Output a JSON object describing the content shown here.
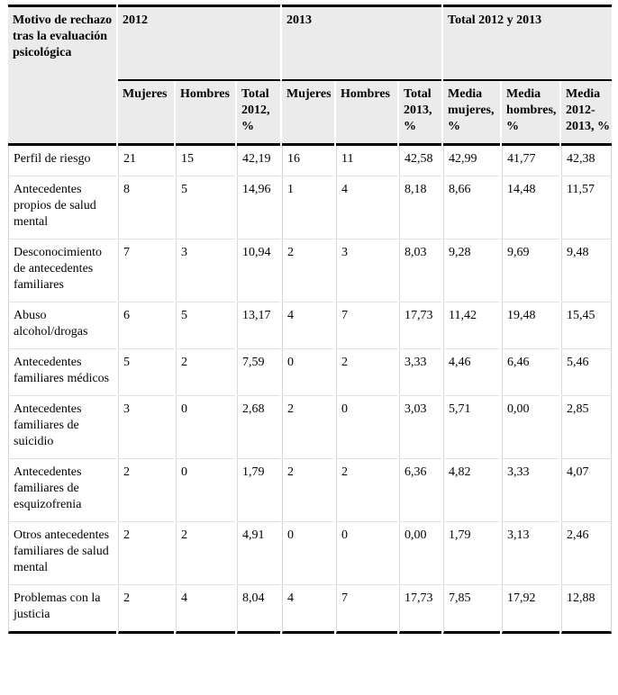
{
  "table": {
    "col1_header": "Motivo de rechazo tras la evaluación psicológica",
    "groups": [
      {
        "label": "2012"
      },
      {
        "label": "2013"
      },
      {
        "label": "Total 2012 y 2013"
      }
    ],
    "subheaders": [
      "Mujeres",
      "Hombres",
      "Total 2012, %",
      "Mujeres",
      "Hombres",
      "Total 2013, %",
      "Media mujeres, %",
      "Media hombres, %",
      "Media 2012-2013, %"
    ],
    "rows": [
      {
        "motivo": "Perfil de riesgo",
        "values": [
          "21",
          "15",
          "42,19",
          "16",
          "11",
          "42,58",
          "42,99",
          "41,77",
          "42,38"
        ]
      },
      {
        "motivo": "Antecedentes propios de salud mental",
        "values": [
          "8",
          "5",
          "14,96",
          "1",
          "4",
          "8,18",
          "8,66",
          "14,48",
          "11,57"
        ]
      },
      {
        "motivo": "Desconocimiento de antecedentes familiares",
        "values": [
          "7",
          "3",
          "10,94",
          "2",
          "3",
          "8,03",
          "9,28",
          "9,69",
          "9,48"
        ]
      },
      {
        "motivo": "Abuso alcohol/drogas",
        "values": [
          "6",
          "5",
          "13,17",
          "4",
          "7",
          "17,73",
          "11,42",
          "19,48",
          "15,45"
        ]
      },
      {
        "motivo": "Antecedentes familiares médicos",
        "values": [
          "5",
          "2",
          "7,59",
          "0",
          "2",
          "3,33",
          "4,46",
          "6,46",
          "5,46"
        ]
      },
      {
        "motivo": "Antecedentes familiares de suicidio",
        "values": [
          "3",
          "0",
          "2,68",
          "2",
          "0",
          "3,03",
          "5,71",
          "0,00",
          "2,85"
        ]
      },
      {
        "motivo": "Antecedentes familiares de esquizofrenia",
        "values": [
          "2",
          "0",
          "1,79",
          "2",
          "2",
          "6,36",
          "4,82",
          "3,33",
          "4,07"
        ]
      },
      {
        "motivo": "Otros antecedentes familiares de salud mental",
        "values": [
          "2",
          "2",
          "4,91",
          "0",
          "0",
          "0,00",
          "1,79",
          "3,13",
          "2,46"
        ]
      },
      {
        "motivo": "Problemas con la justicia",
        "values": [
          "2",
          "4",
          "8,04",
          "4",
          "7",
          "17,73",
          "7,85",
          "17,92",
          "12,88"
        ]
      }
    ]
  },
  "colors": {
    "header_bg": "#ebebeb",
    "thick_rule": "#000000",
    "thin_rule": "#d8d8d8"
  }
}
